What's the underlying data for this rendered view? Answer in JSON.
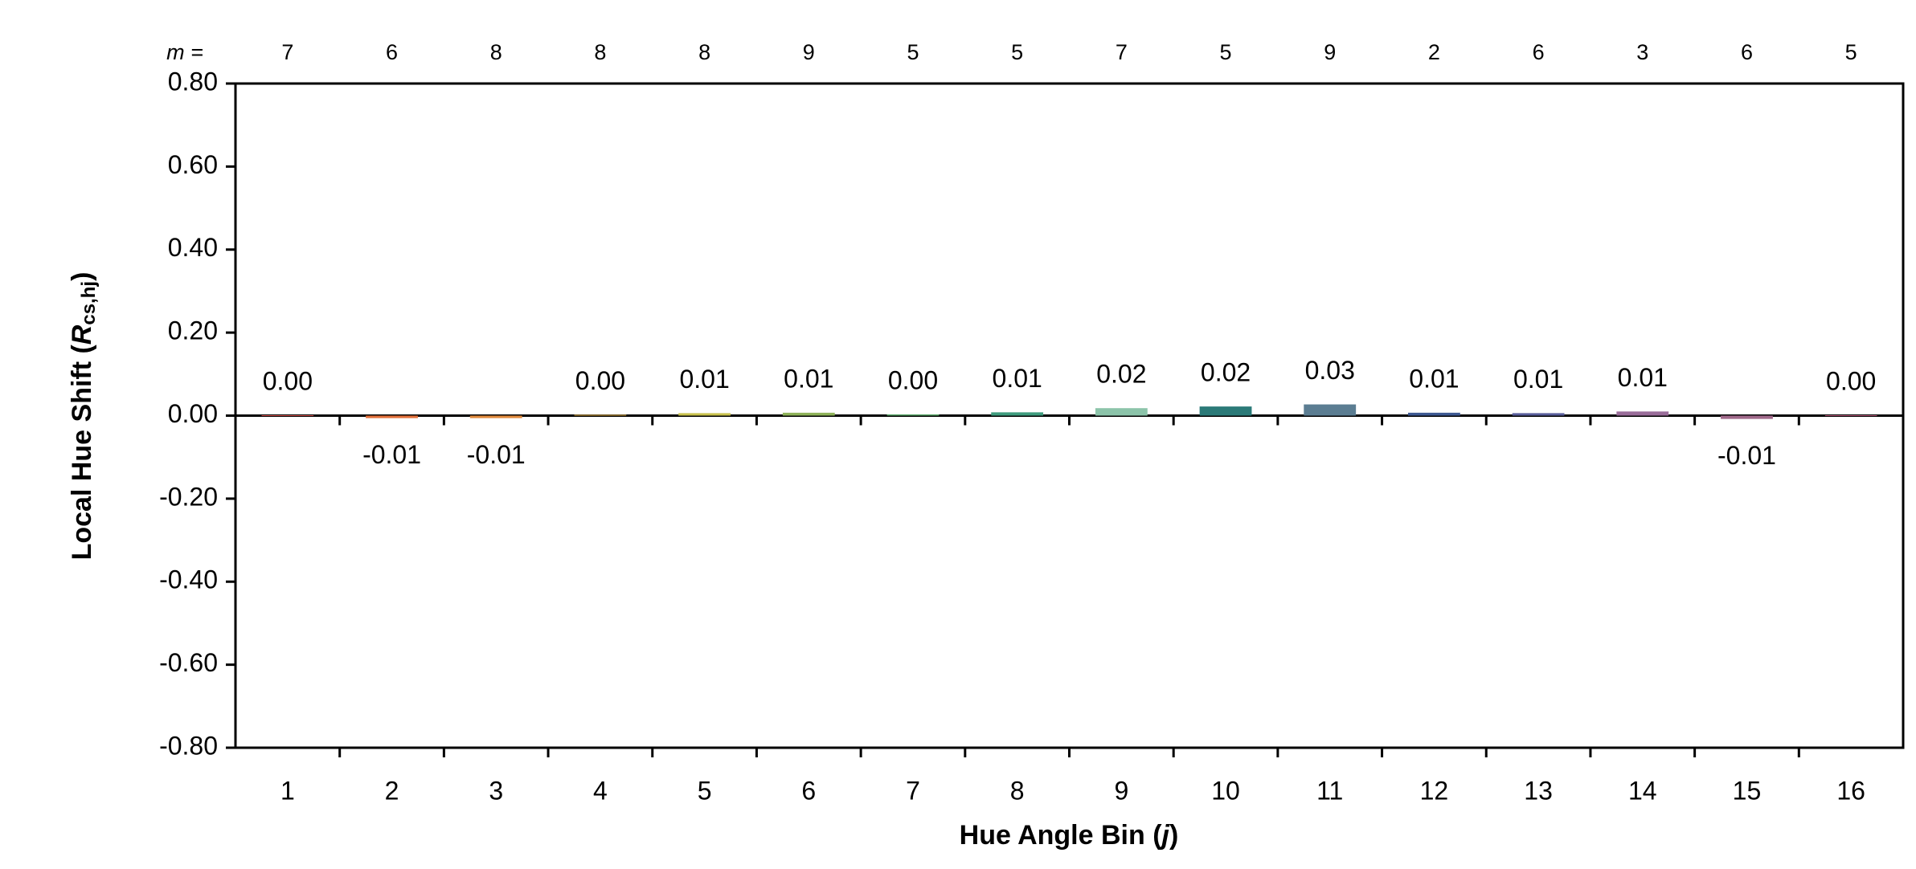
{
  "chart_data": {
    "type": "bar",
    "categories": [
      "1",
      "2",
      "3",
      "4",
      "5",
      "6",
      "7",
      "8",
      "9",
      "10",
      "11",
      "12",
      "13",
      "14",
      "15",
      "16"
    ],
    "values": [
      0.001,
      -0.006,
      -0.006,
      0.002,
      0.006,
      0.007,
      0.003,
      0.008,
      0.018,
      0.022,
      0.027,
      0.007,
      0.006,
      0.01,
      -0.008,
      0.001
    ],
    "value_labels": [
      "0.00",
      "-0.01",
      "-0.01",
      "0.00",
      "0.01",
      "0.01",
      "0.00",
      "0.01",
      "0.02",
      "0.02",
      "0.03",
      "0.01",
      "0.01",
      "0.01",
      "-0.01",
      "0.00"
    ],
    "colors": [
      "#d9534f",
      "#e2703a",
      "#e08a3c",
      "#e8b64a",
      "#c9c24e",
      "#8fb35a",
      "#5aa86a",
      "#3f9c7e",
      "#8cc4aa",
      "#2b7a78",
      "#5b7d92",
      "#3f5a93",
      "#5a5f9c",
      "#9a6d9a",
      "#a0698a",
      "#b85a7a"
    ],
    "counts_label": "m =",
    "counts": [
      "7",
      "6",
      "8",
      "8",
      "8",
      "9",
      "5",
      "5",
      "7",
      "5",
      "9",
      "2",
      "6",
      "3",
      "6",
      "5"
    ],
    "xlabel": {
      "text": "Hue Angle Bin (",
      "var": "j",
      "end": ")"
    },
    "ylabel": {
      "text": "Local Hue Shift (",
      "var": "R",
      "sub": "cs,hj",
      "end": ")"
    },
    "ylim": [
      -0.8,
      0.8
    ],
    "yticks": [
      {
        "value": -0.8,
        "label": "-0.80"
      },
      {
        "value": -0.6,
        "label": "-0.60"
      },
      {
        "value": -0.4,
        "label": "-0.40"
      },
      {
        "value": -0.2,
        "label": "-0.20"
      },
      {
        "value": 0,
        "label": "0.00"
      },
      {
        "value": 0.2,
        "label": "0.20"
      },
      {
        "value": 0.4,
        "label": "0.40"
      },
      {
        "value": 0.6,
        "label": "0.60"
      },
      {
        "value": 0.8,
        "label": "0.80"
      }
    ],
    "grid": false
  }
}
